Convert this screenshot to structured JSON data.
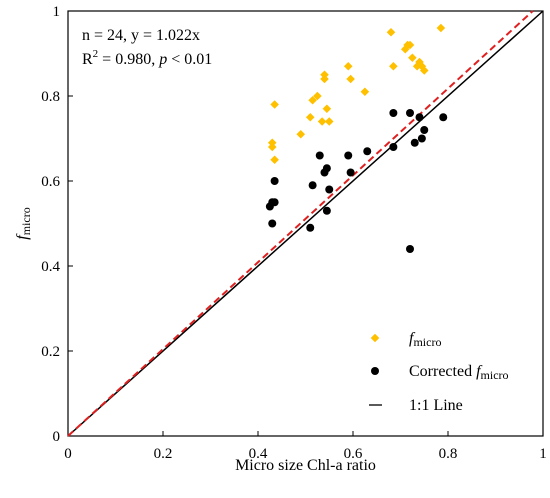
{
  "chart_data": {
    "type": "scatter",
    "xlabel": "Micro size Chl-a ratio",
    "ylabel": {
      "italic": "f",
      "sub": "micro"
    },
    "xlim": [
      0,
      1
    ],
    "ylim": [
      0,
      1
    ],
    "x_ticks": [
      "0",
      "0.2",
      "0.4",
      "0.6",
      "0.8",
      "1"
    ],
    "y_ticks": [
      "0",
      "0.2",
      "0.4",
      "0.6",
      "0.8",
      "1"
    ],
    "grid": false,
    "legend_position": "bottom-right",
    "annotation": {
      "line1": "n = 24, y = 1.022x",
      "r2_prefix": "R",
      "r2_sup": "2",
      "r2_value": " = 0.980, ",
      "p_italic": "p",
      "p_rest": " < 0.01"
    },
    "series": [
      {
        "name": {
          "italic": "f",
          "sub": "micro"
        },
        "marker": "diamond",
        "color": "#FFC000",
        "points": [
          [
            0.43,
            0.68
          ],
          [
            0.43,
            0.69
          ],
          [
            0.435,
            0.65
          ],
          [
            0.435,
            0.78
          ],
          [
            0.49,
            0.71
          ],
          [
            0.51,
            0.75
          ],
          [
            0.515,
            0.79
          ],
          [
            0.525,
            0.8
          ],
          [
            0.535,
            0.74
          ],
          [
            0.54,
            0.84
          ],
          [
            0.54,
            0.85
          ],
          [
            0.545,
            0.77
          ],
          [
            0.55,
            0.74
          ],
          [
            0.59,
            0.87
          ],
          [
            0.595,
            0.84
          ],
          [
            0.625,
            0.81
          ],
          [
            0.68,
            0.95
          ],
          [
            0.685,
            0.87
          ],
          [
            0.71,
            0.91
          ],
          [
            0.715,
            0.92
          ],
          [
            0.72,
            0.92
          ],
          [
            0.725,
            0.89
          ],
          [
            0.735,
            0.87
          ],
          [
            0.74,
            0.88
          ],
          [
            0.745,
            0.87
          ],
          [
            0.75,
            0.86
          ],
          [
            0.785,
            0.96
          ]
        ]
      },
      {
        "name": {
          "prefix": "Corrected ",
          "italic": "f",
          "sub": "micro"
        },
        "marker": "circle",
        "color": "#000000",
        "points": [
          [
            0.425,
            0.54
          ],
          [
            0.43,
            0.55
          ],
          [
            0.43,
            0.5
          ],
          [
            0.435,
            0.6
          ],
          [
            0.435,
            0.55
          ],
          [
            0.51,
            0.49
          ],
          [
            0.515,
            0.59
          ],
          [
            0.53,
            0.66
          ],
          [
            0.54,
            0.62
          ],
          [
            0.545,
            0.63
          ],
          [
            0.545,
            0.53
          ],
          [
            0.55,
            0.58
          ],
          [
            0.59,
            0.66
          ],
          [
            0.595,
            0.62
          ],
          [
            0.63,
            0.67
          ],
          [
            0.685,
            0.76
          ],
          [
            0.685,
            0.68
          ],
          [
            0.72,
            0.76
          ],
          [
            0.72,
            0.44
          ],
          [
            0.73,
            0.69
          ],
          [
            0.74,
            0.75
          ],
          [
            0.745,
            0.7
          ],
          [
            0.75,
            0.72
          ],
          [
            0.79,
            0.75
          ]
        ]
      },
      {
        "name": "1:1 Line",
        "marker": "line",
        "color": "#000000",
        "slope": 1
      },
      {
        "marker": "dashed-line",
        "color": "#E02020",
        "slope": 1.022
      }
    ]
  }
}
